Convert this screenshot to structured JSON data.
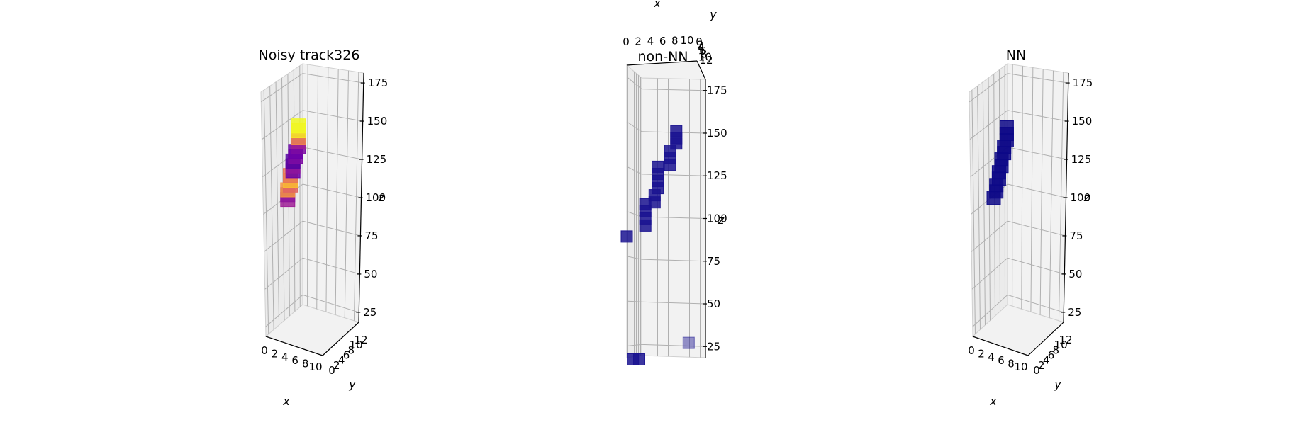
{
  "chart_data": [
    {
      "type": "scatter3d",
      "title": "Noisy track326",
      "xlabel": "x",
      "ylabel": "y",
      "zlabel": "z",
      "xticks": [
        "0",
        "2",
        "4",
        "6",
        "8",
        "10"
      ],
      "yticks": [
        "0",
        "2",
        "4",
        "6",
        "8",
        "10",
        "12"
      ],
      "zticks": [
        "25",
        "50",
        "75",
        "100",
        "125",
        "150",
        "175"
      ],
      "xlim": [
        0,
        11
      ],
      "ylim": [
        0,
        13
      ],
      "zlim": [
        25,
        180
      ],
      "colormap": [
        "#0d0887",
        "#6a00a8",
        "#b12a90",
        "#e16462",
        "#fca636",
        "#f0f921"
      ],
      "points": [
        {
          "x": 5,
          "y": 6,
          "z": 147,
          "v": 1.0
        },
        {
          "x": 5,
          "y": 6,
          "z": 144,
          "v": 0.95
        },
        {
          "x": 5,
          "y": 6,
          "z": 140,
          "v": 0.7
        },
        {
          "x": 5,
          "y": 6,
          "z": 137,
          "v": 0.35
        },
        {
          "x": 5,
          "y": 6,
          "z": 134,
          "v": 0.25
        },
        {
          "x": 4.5,
          "y": 6,
          "z": 131,
          "v": 0.2
        },
        {
          "x": 4.5,
          "y": 6,
          "z": 128,
          "v": 0.25
        },
        {
          "x": 4,
          "y": 6,
          "z": 125,
          "v": 0.15
        },
        {
          "x": 4,
          "y": 6,
          "z": 122,
          "v": 0.3
        },
        {
          "x": 4,
          "y": 6,
          "z": 119,
          "v": 0.2
        },
        {
          "x": 3.5,
          "y": 6,
          "z": 116,
          "v": 0.65
        },
        {
          "x": 3.5,
          "y": 6,
          "z": 113,
          "v": 0.85
        },
        {
          "x": 3.5,
          "y": 6,
          "z": 110,
          "v": 0.6
        },
        {
          "x": 3,
          "y": 6,
          "z": 107,
          "v": 0.75
        },
        {
          "x": 3,
          "y": 6,
          "z": 104,
          "v": 0.3
        },
        {
          "x": 3,
          "y": 6,
          "z": 101,
          "v": 0.35
        }
      ]
    },
    {
      "type": "scatter3d",
      "title": "non-NN",
      "xlabel": "x",
      "ylabel": "y",
      "zlabel": "z",
      "xticks": [
        "0",
        "2",
        "4",
        "6",
        "8",
        "10"
      ],
      "yticks": [
        "0",
        "2",
        "4",
        "6",
        "8",
        "10",
        "12"
      ],
      "zticks": [
        "25",
        "50",
        "75",
        "100",
        "125",
        "150",
        "175"
      ],
      "xlim": [
        0,
        11
      ],
      "ylim": [
        0,
        13
      ],
      "zlim": [
        25,
        180
      ],
      "color": "#1a1390",
      "points": [
        {
          "x": 8,
          "y": 6,
          "z": 152
        },
        {
          "x": 8,
          "y": 6,
          "z": 148
        },
        {
          "x": 8,
          "y": 6,
          "z": 145
        },
        {
          "x": 7,
          "y": 6,
          "z": 141
        },
        {
          "x": 7,
          "y": 6,
          "z": 137
        },
        {
          "x": 7,
          "y": 6,
          "z": 133
        },
        {
          "x": 5,
          "y": 6,
          "z": 132
        },
        {
          "x": 5,
          "y": 6,
          "z": 128
        },
        {
          "x": 5,
          "y": 6,
          "z": 124
        },
        {
          "x": 5,
          "y": 6,
          "z": 120
        },
        {
          "x": 4.5,
          "y": 6,
          "z": 116
        },
        {
          "x": 4.5,
          "y": 6,
          "z": 112
        },
        {
          "x": 3,
          "y": 6,
          "z": 111
        },
        {
          "x": 3,
          "y": 6,
          "z": 107
        },
        {
          "x": 3,
          "y": 6,
          "z": 103
        },
        {
          "x": 3,
          "y": 6,
          "z": 99
        },
        {
          "x": 0,
          "y": 0,
          "z": 91
        },
        {
          "x": 10,
          "y": 12,
          "z": 35,
          "alpha": 0.45
        },
        {
          "x": 1,
          "y": 0,
          "z": 22
        },
        {
          "x": 2,
          "y": 0,
          "z": 22
        }
      ]
    },
    {
      "type": "scatter3d",
      "title": "NN",
      "xlabel": "x",
      "ylabel": "y",
      "zlabel": "z",
      "xticks": [
        "0",
        "2",
        "4",
        "6",
        "8",
        "10"
      ],
      "yticks": [
        "0",
        "2",
        "4",
        "6",
        "8",
        "10",
        "12"
      ],
      "zticks": [
        "25",
        "50",
        "75",
        "100",
        "125",
        "150",
        "175"
      ],
      "xlim": [
        0,
        11
      ],
      "ylim": [
        0,
        13
      ],
      "zlim": [
        25,
        180
      ],
      "color": "#0d0887",
      "points": [
        {
          "x": 5.5,
          "y": 6,
          "z": 146
        },
        {
          "x": 5.5,
          "y": 6,
          "z": 142
        },
        {
          "x": 5.5,
          "y": 6,
          "z": 138
        },
        {
          "x": 5,
          "y": 6,
          "z": 134
        },
        {
          "x": 5,
          "y": 6,
          "z": 130
        },
        {
          "x": 4.5,
          "y": 6,
          "z": 126
        },
        {
          "x": 4.5,
          "y": 6,
          "z": 122
        },
        {
          "x": 4,
          "y": 6,
          "z": 118
        },
        {
          "x": 4,
          "y": 6,
          "z": 114
        },
        {
          "x": 3.5,
          "y": 6,
          "z": 110
        },
        {
          "x": 3.5,
          "y": 6,
          "z": 106
        },
        {
          "x": 3,
          "y": 6,
          "z": 102
        }
      ]
    }
  ]
}
